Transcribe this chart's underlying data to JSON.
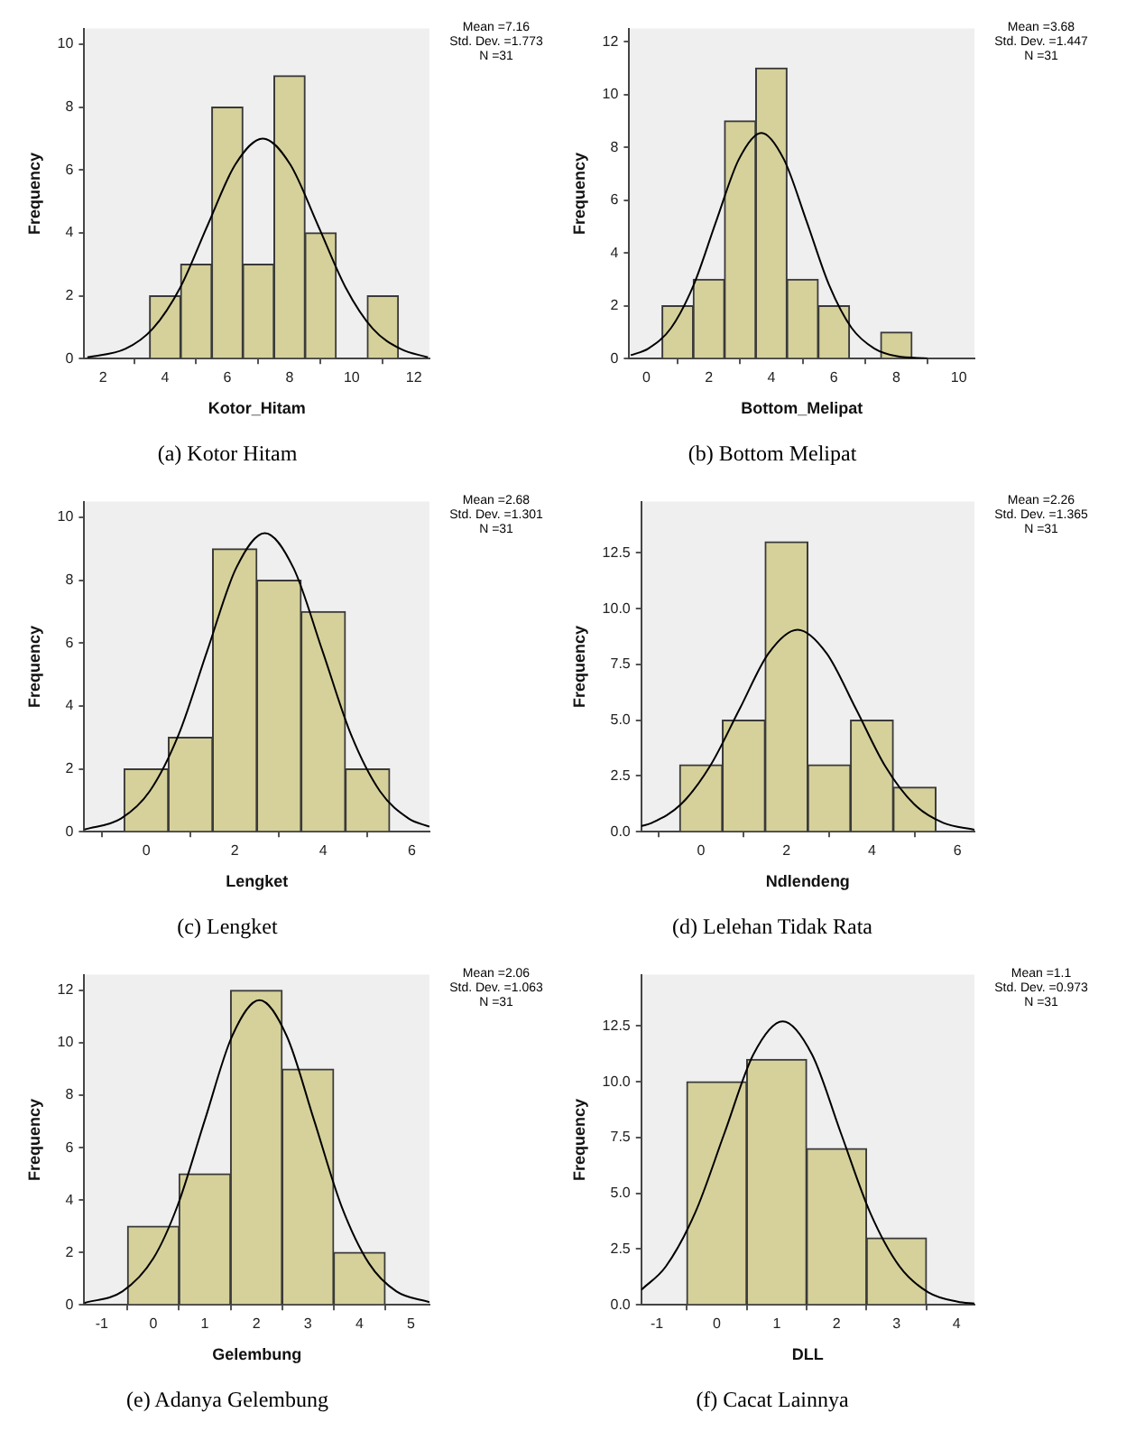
{
  "chart_data": [
    {
      "type": "histogram",
      "title": "(a) Kotor Hitam",
      "xlabel": "Kotor_Hitam",
      "ylabel": "Frequency",
      "annotations": [
        "Mean =7.16",
        "Std. Dev. =1.773",
        "N =31"
      ],
      "color": "#d6d19b",
      "bins": [
        3.5,
        4.5,
        5.5,
        6.5,
        7.5,
        8.5,
        9.5,
        10.5,
        11.5
      ],
      "values": [
        2,
        3,
        8,
        3,
        9,
        4,
        0,
        2
      ],
      "xlim": [
        1.4,
        12.5
      ],
      "ylim": [
        0,
        10.5
      ],
      "xticks": [
        2,
        4,
        6,
        8,
        10,
        12
      ],
      "yticks": [
        0,
        2,
        4,
        6,
        8,
        10
      ],
      "series": [
        {
          "type": "line",
          "color": "#000000",
          "marker": "none",
          "x": [
            1.5,
            2.72,
            3.6,
            4.49,
            5.37,
            6.26,
            7.14,
            8.02,
            8.91,
            9.8,
            10.68,
            11.57,
            12.45
          ],
          "values": [
            0.04,
            0.31,
            0.95,
            2.27,
            4.25,
            6.18,
            7.0,
            6.18,
            4.25,
            2.27,
            0.95,
            0.31,
            0.04
          ]
        }
      ]
    },
    {
      "type": "histogram",
      "title": "(b) Bottom Melipat",
      "xlabel": "Bottom_Melipat",
      "ylabel": "Frequency",
      "annotations": [
        "Mean =3.68",
        "Std. Dev. =1.447",
        "N =31"
      ],
      "color": "#d6d19b",
      "bins": [
        0.5,
        1.5,
        2.5,
        3.5,
        4.5,
        5.5,
        6.5,
        7.5,
        8.5
      ],
      "values": [
        2,
        3,
        9,
        11,
        3,
        2,
        0,
        1
      ],
      "xlim": [
        -0.55,
        10.5
      ],
      "ylim": [
        0,
        12.5
      ],
      "xticks": [
        0,
        2,
        4,
        6,
        8,
        10
      ],
      "yticks": [
        0,
        2,
        4,
        6,
        8,
        10,
        12
      ],
      "series": [
        {
          "type": "line",
          "color": "#000000",
          "marker": "none",
          "x": [
            -0.5,
            0.06,
            0.79,
            1.51,
            2.23,
            2.96,
            3.68,
            4.4,
            5.13,
            5.85,
            6.57,
            7.3,
            8.02,
            9.0
          ],
          "values": [
            0.13,
            0.38,
            1.16,
            2.78,
            5.19,
            7.55,
            8.55,
            7.55,
            5.19,
            2.78,
            1.16,
            0.38,
            0.09,
            0.01
          ]
        }
      ]
    },
    {
      "type": "histogram",
      "title": "(c) Lengket",
      "xlabel": "Lengket",
      "ylabel": "Frequency",
      "annotations": [
        "Mean =2.68",
        "Std. Dev. =1.301",
        "N =31"
      ],
      "color": "#d6d19b",
      "bins": [
        -0.5,
        0.5,
        1.5,
        2.5,
        3.5,
        4.5,
        5.5
      ],
      "values": [
        2,
        3,
        9,
        8,
        7,
        2
      ],
      "xlim": [
        -1.4,
        6.4
      ],
      "ylim": [
        0,
        10.5
      ],
      "xticks": [
        0,
        2,
        4,
        6
      ],
      "yticks": [
        0,
        2,
        4,
        6,
        8,
        10
      ],
      "series": [
        {
          "type": "line",
          "color": "#000000",
          "marker": "none",
          "x": [
            -1.4,
            -0.57,
            0.08,
            0.73,
            1.38,
            2.03,
            2.68,
            3.33,
            3.98,
            4.63,
            5.28,
            5.93,
            6.4
          ],
          "values": [
            0.07,
            0.42,
            1.29,
            3.08,
            5.76,
            8.38,
            9.5,
            8.38,
            5.76,
            3.08,
            1.29,
            0.42,
            0.16
          ]
        }
      ]
    },
    {
      "type": "histogram",
      "title": "(d) Lelehan Tidak Rata",
      "xlabel": "Ndlendeng",
      "ylabel": "Frequency",
      "annotations": [
        "Mean =2.26",
        "Std. Dev. =1.365",
        "N =31"
      ],
      "color": "#d6d19b",
      "bins": [
        -0.5,
        0.5,
        1.5,
        2.5,
        3.5,
        4.5,
        5.5
      ],
      "values": [
        3,
        5,
        13,
        3,
        5,
        2
      ],
      "xlim": [
        -1.4,
        6.4
      ],
      "ylim": [
        0,
        14.8
      ],
      "xticks": [
        0,
        2,
        4,
        6
      ],
      "yticks": [
        {
          "value": 0,
          "label": "0.0"
        },
        {
          "value": 2.5,
          "label": "2.5"
        },
        {
          "value": 5,
          "label": "5.0"
        },
        {
          "value": 7.5,
          "label": "7.5"
        },
        {
          "value": 10,
          "label": "10.0"
        },
        {
          "value": 12.5,
          "label": "12.5"
        }
      ],
      "series": [
        {
          "type": "line",
          "color": "#000000",
          "marker": "none",
          "x": [
            -1.4,
            -1.15,
            -0.47,
            0.21,
            0.9,
            1.58,
            2.26,
            2.94,
            3.63,
            4.31,
            4.99,
            5.67,
            6.4
          ],
          "values": [
            0.25,
            0.4,
            1.23,
            2.94,
            5.49,
            8.0,
            9.06,
            8.0,
            5.49,
            2.94,
            1.23,
            0.4,
            0.09
          ]
        }
      ]
    },
    {
      "type": "histogram",
      "title": "(e) Adanya Gelembung",
      "xlabel": "Gelembung",
      "ylabel": "Frequency",
      "annotations": [
        "Mean =2.06",
        "Std. Dev. =1.063",
        "N =31"
      ],
      "color": "#d6d19b",
      "bins": [
        -0.5,
        0.5,
        1.5,
        2.5,
        3.5,
        4.5
      ],
      "values": [
        3,
        5,
        12,
        9,
        2
      ],
      "xlim": [
        -1.34,
        5.36
      ],
      "ylim": [
        0,
        12.6
      ],
      "xticks": [
        -1,
        0,
        1,
        2,
        3,
        4,
        5
      ],
      "yticks": [
        0,
        2,
        4,
        6,
        8,
        10,
        12
      ],
      "series": [
        {
          "type": "line",
          "color": "#000000",
          "marker": "none",
          "x": [
            -1.34,
            -0.6,
            0,
            0.47,
            1.0,
            1.53,
            2.06,
            2.59,
            3.12,
            3.65,
            4.19,
            4.72,
            5.36
          ],
          "values": [
            0.07,
            0.51,
            1.77,
            3.78,
            7.05,
            10.26,
            11.63,
            10.26,
            7.05,
            3.78,
            1.57,
            0.51,
            0.1
          ]
        }
      ]
    },
    {
      "type": "histogram",
      "title": "(f) Cacat Lainnya",
      "xlabel": "DLL",
      "ylabel": "Frequency",
      "annotations": [
        "Mean =1.1",
        "Std. Dev. =0.973",
        "N =31"
      ],
      "color": "#d6d19b",
      "bins": [
        -0.5,
        0.5,
        1.5,
        2.5,
        3.5
      ],
      "values": [
        10,
        11,
        7,
        3
      ],
      "xlim": [
        -1.26,
        4.3
      ],
      "ylim": [
        0,
        14.8
      ],
      "xticks": [
        -1,
        0,
        1,
        2,
        3,
        4
      ],
      "yticks": [
        {
          "value": 0,
          "label": "0.0"
        },
        {
          "value": 2.5,
          "label": "2.5"
        },
        {
          "value": 5,
          "label": "5.0"
        },
        {
          "value": 7.5,
          "label": "7.5"
        },
        {
          "value": 10,
          "label": "10.0"
        },
        {
          "value": 12.5,
          "label": "12.5"
        }
      ],
      "series": [
        {
          "type": "line",
          "color": "#000000",
          "marker": "none",
          "x": [
            -1.26,
            -0.85,
            -0.36,
            0.13,
            0.61,
            1.1,
            1.59,
            2.07,
            2.56,
            3.05,
            3.53,
            4.02,
            4.3
          ],
          "values": [
            0.67,
            1.72,
            4.13,
            7.71,
            11.22,
            12.71,
            11.22,
            7.71,
            4.13,
            1.72,
            0.56,
            0.14,
            0.06
          ]
        }
      ]
    }
  ]
}
